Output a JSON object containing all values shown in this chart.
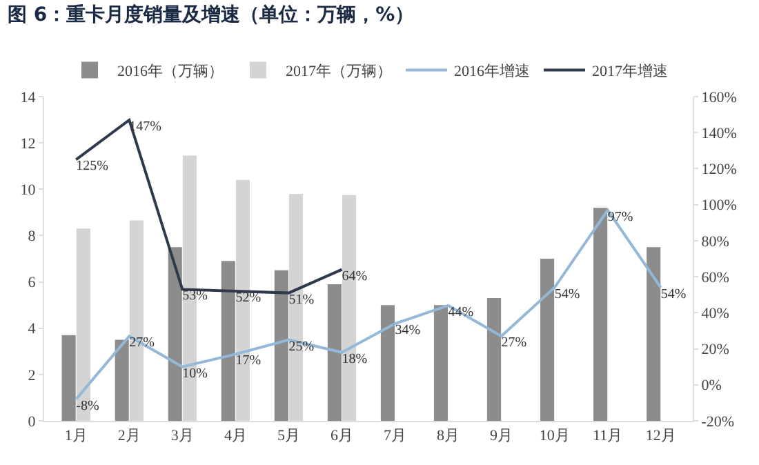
{
  "chart_data": {
    "type": "bar",
    "title": "图 6：重卡月度销量及增速（单位：万辆，%）",
    "categories": [
      "1月",
      "2月",
      "3月",
      "4月",
      "5月",
      "6月",
      "7月",
      "8月",
      "9月",
      "10月",
      "11月",
      "12月"
    ],
    "series": [
      {
        "name": "2016年（万辆）",
        "color": "#8c8c8c",
        "values": [
          3.7,
          3.5,
          7.5,
          6.9,
          6.5,
          5.9,
          5.0,
          5.0,
          5.3,
          7.0,
          9.2,
          7.5
        ]
      },
      {
        "name": "2017年（万辆）",
        "color": "#d4d4d4",
        "values": [
          8.3,
          8.65,
          11.45,
          10.4,
          9.8,
          9.75,
          null,
          null,
          null,
          null,
          null,
          null
        ]
      },
      {
        "name": "2016年增速",
        "type": "line",
        "axis": "y2",
        "color": "#94b8d8",
        "values": [
          -8,
          27,
          10,
          17,
          25,
          18,
          34,
          44,
          27,
          54,
          97,
          54
        ],
        "value_labels": [
          "-8%",
          "27%",
          "10%",
          "17%",
          "25%",
          "18%",
          "34%",
          "44%",
          "27%",
          "54%",
          "97%",
          "54%"
        ]
      },
      {
        "name": "2017年增速",
        "type": "line",
        "axis": "y2",
        "color": "#2e3a4b",
        "values": [
          125,
          147,
          53,
          52,
          51,
          64,
          null,
          null,
          null,
          null,
          null,
          null
        ],
        "value_labels": [
          "125%",
          "147%",
          "53%",
          "52%",
          "51%",
          "64%",
          null,
          null,
          null,
          null,
          null,
          null
        ]
      }
    ],
    "ylim": [
      0,
      14
    ],
    "yticks": [
      0,
      2,
      4,
      6,
      8,
      10,
      12,
      14
    ],
    "y2lim": [
      -20,
      160
    ],
    "y2ticks": [
      {
        "value": -20,
        "label": "-20%"
      },
      {
        "value": 0,
        "label": "0%"
      },
      {
        "value": 20,
        "label": "20%"
      },
      {
        "value": 40,
        "label": "40%"
      },
      {
        "value": 60,
        "label": "60%"
      },
      {
        "value": 80,
        "label": "80%"
      },
      {
        "value": 100,
        "label": "100%"
      },
      {
        "value": 120,
        "label": "120%"
      },
      {
        "value": 140,
        "label": "140%"
      },
      {
        "value": 160,
        "label": "160%"
      }
    ],
    "grid": false,
    "legend": "top",
    "marker": "none",
    "line_style": "solid"
  }
}
